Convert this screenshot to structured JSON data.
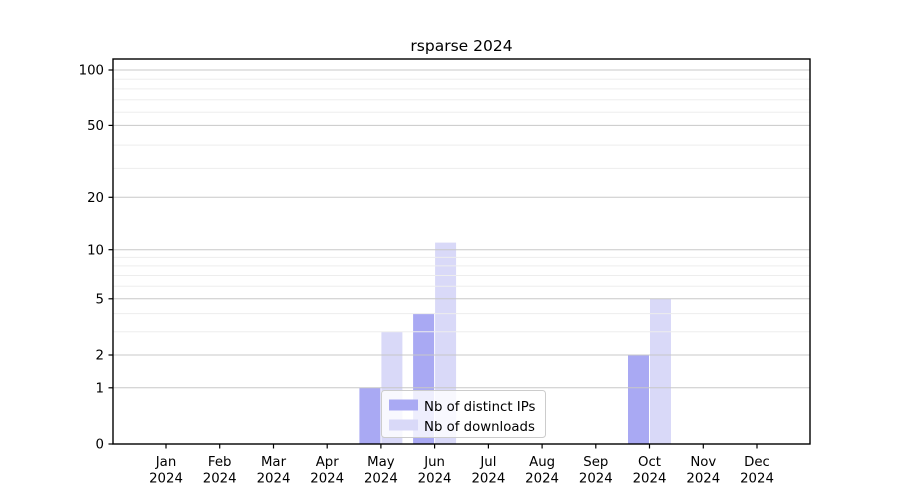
{
  "chart_data": {
    "type": "bar",
    "title": "rsparse 2024",
    "x_tick_labels": [
      {
        "line1": "Jan",
        "line2": "2024"
      },
      {
        "line1": "Feb",
        "line2": "2024"
      },
      {
        "line1": "Mar",
        "line2": "2024"
      },
      {
        "line1": "Apr",
        "line2": "2024"
      },
      {
        "line1": "May",
        "line2": "2024"
      },
      {
        "line1": "Jun",
        "line2": "2024"
      },
      {
        "line1": "Jul",
        "line2": "2024"
      },
      {
        "line1": "Aug",
        "line2": "2024"
      },
      {
        "line1": "Sep",
        "line2": "2024"
      },
      {
        "line1": "Oct",
        "line2": "2024"
      },
      {
        "line1": "Nov",
        "line2": "2024"
      },
      {
        "line1": "Dec",
        "line2": "2024"
      }
    ],
    "series": [
      {
        "name": "Nb of distinct IPs",
        "color": "#a9a9f3",
        "values": [
          0,
          0,
          0,
          0,
          1,
          4,
          0,
          0,
          0,
          2,
          0,
          0
        ]
      },
      {
        "name": "Nb of downloads",
        "color": "#d9d9f8",
        "values": [
          0,
          0,
          0,
          0,
          3,
          11,
          0,
          0,
          0,
          5,
          0,
          0
        ]
      }
    ],
    "yscale": "log1p",
    "ylim": [
      0,
      100
    ],
    "yticks": [
      0,
      1,
      2,
      5,
      10,
      20,
      50,
      100
    ],
    "minor_gridlines": [
      3,
      4,
      6,
      7,
      8,
      9,
      29,
      39,
      59,
      69,
      79,
      89
    ],
    "grid": true,
    "legend": {
      "position": "lower-center",
      "entries": [
        "Nb of distinct IPs",
        "Nb of downloads"
      ]
    },
    "colors": {
      "background": "#ffffff",
      "axis": "#000000",
      "text": "#000000",
      "major_grid": "#c8c8c8",
      "minor_grid": "#ededed",
      "legend_border": "#cccccc",
      "legend_bg": "rgba(255,255,255,0.8)"
    }
  }
}
